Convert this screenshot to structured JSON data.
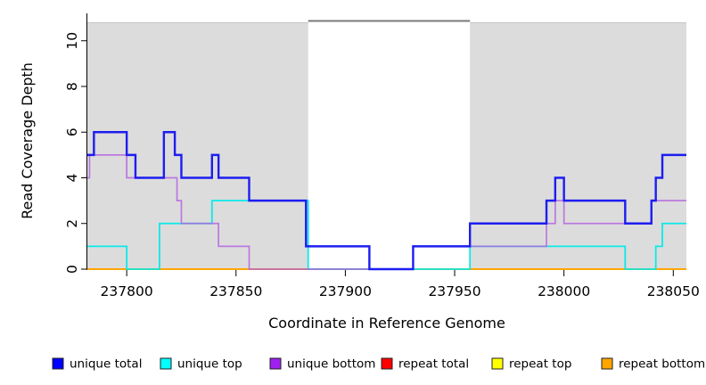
{
  "chart_data": {
    "type": "line",
    "subtype": "step-coverage",
    "title": "",
    "xlabel": "Coordinate in Reference Genome",
    "ylabel": "Read Coverage Depth",
    "xlim": [
      237782,
      238056
    ],
    "ylim": [
      0,
      11.2
    ],
    "x_ticks": [
      237800,
      237850,
      237900,
      237950,
      238000,
      238050
    ],
    "y_ticks": [
      0,
      2,
      4,
      6,
      8,
      10
    ],
    "grid": false,
    "legend_position": "bottom",
    "background_color": "#ffffff",
    "shaded_region_color": "#dcdcdc",
    "shaded_region_border_color": "#c6c6c6",
    "axis_color": "#000000",
    "shaded_regions": [
      {
        "name": "left-repeat-region",
        "x0": 237782,
        "x1": 237883
      },
      {
        "name": "right-repeat-region",
        "x0": 237957,
        "x1": 238056
      }
    ],
    "gap_top_border": {
      "x0": 237883,
      "x1": 237957,
      "color": "#787878"
    },
    "series": [
      {
        "name": "unique total",
        "legend_color": "#0000ff",
        "line_color": "#1d1df0",
        "width": 2.4,
        "opacity": 1,
        "z": 6,
        "steps": [
          [
            237782,
            5
          ],
          [
            237785,
            6
          ],
          [
            237800,
            5
          ],
          [
            237804,
            4
          ],
          [
            237817,
            6
          ],
          [
            237822,
            5
          ],
          [
            237825,
            4
          ],
          [
            237839,
            5
          ],
          [
            237842,
            4
          ],
          [
            237856,
            3
          ],
          [
            237882,
            1
          ],
          [
            237911,
            0
          ],
          [
            237931,
            1
          ],
          [
            237957,
            2
          ],
          [
            237992,
            3
          ],
          [
            237996,
            4
          ],
          [
            238000,
            3
          ],
          [
            238028,
            2
          ],
          [
            238040,
            3
          ],
          [
            238042,
            4
          ],
          [
            238045,
            5
          ]
        ]
      },
      {
        "name": "unique top",
        "legend_color": "#00ffff",
        "line_color": "#00e9e9",
        "width": 1.8,
        "opacity": 0.95,
        "z": 4,
        "steps": [
          [
            237782,
            1
          ],
          [
            237800,
            0
          ],
          [
            237815,
            2
          ],
          [
            237839,
            3
          ],
          [
            237883,
            0
          ],
          [
            237957,
            1
          ],
          [
            238028,
            0
          ],
          [
            238042,
            1
          ],
          [
            238045,
            2
          ]
        ]
      },
      {
        "name": "unique bottom",
        "legend_color": "#a020f0",
        "line_color": "#b35fe0",
        "width": 1.7,
        "opacity": 0.8,
        "z": 5,
        "steps": [
          [
            237782,
            4
          ],
          [
            237783,
            5
          ],
          [
            237800,
            4
          ],
          [
            237823,
            3
          ],
          [
            237825,
            2
          ],
          [
            237842,
            1
          ],
          [
            237856,
            0
          ],
          [
            237931,
            1
          ],
          [
            237992,
            2
          ],
          [
            237996,
            3
          ],
          [
            238000,
            2
          ],
          [
            238040,
            3
          ]
        ]
      },
      {
        "name": "repeat total",
        "legend_color": "#ff0000",
        "line_color": "#f2556e",
        "width": 1.6,
        "opacity": 0.9,
        "z": 1,
        "steps": [
          [
            237782,
            0
          ]
        ]
      },
      {
        "name": "repeat top",
        "legend_color": "#ffff00",
        "line_color": "#ffff00",
        "width": 1.6,
        "opacity": 1,
        "z": 2,
        "steps": [
          [
            237782,
            0
          ]
        ]
      },
      {
        "name": "repeat bottom",
        "legend_color": "#ffa500",
        "line_color": "#ffa500",
        "width": 2.0,
        "opacity": 1,
        "z": 3,
        "steps": [
          [
            237782,
            0
          ]
        ]
      }
    ],
    "legend": [
      {
        "label": "unique total",
        "color": "#0000ff"
      },
      {
        "label": "unique top",
        "color": "#00ffff"
      },
      {
        "label": "unique bottom",
        "color": "#a020f0"
      },
      {
        "label": "repeat total",
        "color": "#ff0000"
      },
      {
        "label": "repeat top",
        "color": "#ffff00"
      },
      {
        "label": "repeat bottom",
        "color": "#ffa500"
      }
    ]
  }
}
